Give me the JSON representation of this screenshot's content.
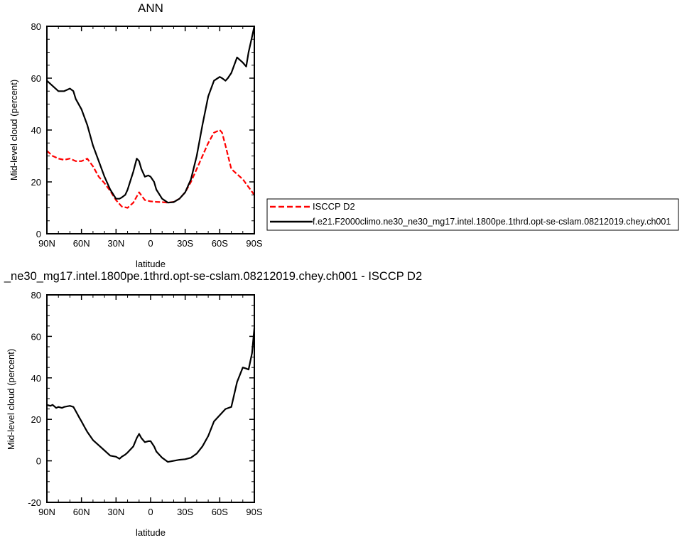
{
  "chart_data": [
    {
      "type": "line",
      "title": "ANN",
      "xlabel": "latitude",
      "ylabel": "Mid-level cloud (percent)",
      "xlim": [
        90,
        -90
      ],
      "ylim": [
        0,
        80
      ],
      "xticks": [
        90,
        60,
        30,
        0,
        -30,
        -60,
        -90
      ],
      "xtick_labels": [
        "90N",
        "60N",
        "30N",
        "0",
        "30S",
        "60S",
        "90S"
      ],
      "yticks": [
        0,
        20,
        40,
        60,
        80
      ],
      "ytick_labels": [
        "0",
        "20",
        "40",
        "60",
        "80"
      ],
      "legend_position": "right",
      "series": [
        {
          "name": "ISCCP D2",
          "color": "#ff0000",
          "dash": "dashed",
          "x": [
            90,
            85,
            80,
            75,
            70,
            65,
            60,
            55,
            50,
            45,
            40,
            35,
            30,
            25,
            20,
            15,
            10,
            5,
            0,
            -5,
            -10,
            -15,
            -20,
            -25,
            -30,
            -35,
            -40,
            -45,
            -50,
            -55,
            -60,
            -62,
            -65,
            -70,
            -75,
            -80,
            -85,
            -90
          ],
          "y": [
            32,
            30,
            29,
            28.5,
            29,
            28,
            28,
            29,
            26,
            22,
            19.5,
            16.5,
            13,
            10.5,
            10,
            12,
            16,
            13,
            12.5,
            12.3,
            12.2,
            12,
            12.3,
            13.5,
            16,
            20,
            25,
            30,
            35,
            39,
            40,
            39,
            34,
            25,
            23,
            21,
            18,
            15
          ]
        },
        {
          "name": "f.e21.F2000climo.ne30_ne30_mg17.intel.1800pe.1thrd.opt-se-cslam.08212019.chey.ch001",
          "color": "#000000",
          "dash": "solid",
          "x": [
            90,
            85,
            80,
            75,
            70,
            67,
            65,
            60,
            55,
            50,
            45,
            40,
            35,
            30,
            27,
            25,
            22,
            20,
            15,
            12,
            10,
            8,
            5,
            2,
            0,
            -3,
            -5,
            -10,
            -15,
            -20,
            -25,
            -30,
            -35,
            -40,
            -45,
            -50,
            -55,
            -60,
            -62,
            -65,
            -67,
            -70,
            -75,
            -80,
            -83,
            -85,
            -88,
            -90
          ],
          "y": [
            59,
            57,
            55,
            55,
            56,
            55,
            52,
            48,
            42,
            34,
            28,
            22,
            17,
            13.5,
            13.5,
            14,
            15,
            17,
            24,
            29,
            28,
            25,
            22,
            22.5,
            22,
            20,
            17,
            13.5,
            12,
            12.2,
            13.5,
            16,
            21,
            30,
            42,
            53,
            59,
            60.5,
            60,
            59,
            60,
            62,
            68,
            66,
            64.5,
            70,
            76,
            80
          ]
        }
      ]
    },
    {
      "type": "line",
      "title": "_ne30_mg17.intel.1800pe.1thrd.opt-se-cslam.08212019.chey.ch001 - ISCCP D2",
      "xlabel": "latitude",
      "ylabel": "Mid-level cloud (percent)",
      "xlim": [
        90,
        -90
      ],
      "ylim": [
        -20,
        80
      ],
      "xticks": [
        90,
        60,
        30,
        0,
        -30,
        -60,
        -90
      ],
      "xtick_labels": [
        "90N",
        "60N",
        "30N",
        "0",
        "30S",
        "60S",
        "90S"
      ],
      "yticks": [
        -20,
        0,
        20,
        40,
        60,
        80
      ],
      "ytick_labels": [
        "-20",
        "0",
        "20",
        "40",
        "60",
        "80"
      ],
      "series": [
        {
          "color": "#000000",
          "dash": "solid",
          "x": [
            90,
            87,
            85,
            82,
            80,
            77,
            75,
            70,
            67,
            65,
            62,
            60,
            57,
            55,
            50,
            45,
            40,
            35,
            30,
            27,
            25,
            22,
            20,
            15,
            12,
            10,
            8,
            5,
            2,
            0,
            -3,
            -5,
            -10,
            -15,
            -20,
            -25,
            -30,
            -35,
            -40,
            -45,
            -50,
            -55,
            -60,
            -65,
            -70,
            -75,
            -80,
            -83,
            -85,
            -88,
            -90
          ],
          "y": [
            27,
            26.5,
            27,
            25.5,
            26,
            25.5,
            26,
            26.5,
            26,
            24,
            21,
            19,
            16,
            14,
            10,
            7.5,
            5,
            2.5,
            2,
            1,
            2,
            3,
            4,
            7,
            11,
            13,
            11,
            9,
            9.5,
            9.5,
            7,
            4.5,
            1.5,
            -0.5,
            0,
            0.5,
            0.8,
            1.5,
            3.5,
            7,
            12,
            19,
            22,
            25,
            26,
            38,
            45,
            44.5,
            44,
            52,
            64
          ]
        }
      ]
    }
  ]
}
